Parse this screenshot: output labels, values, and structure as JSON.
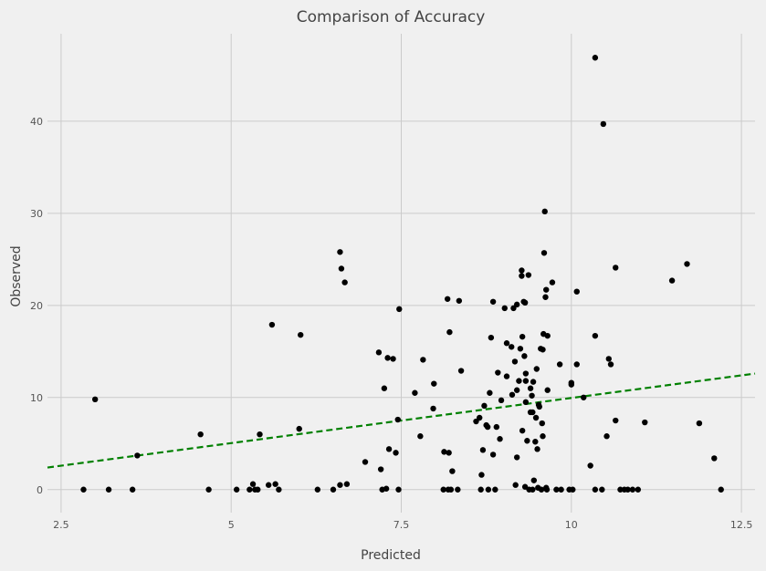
{
  "chart_data": {
    "type": "scatter",
    "title": "Comparison of Accuracy",
    "xlabel": "Predicted",
    "ylabel": "Observed",
    "xlim": [
      2.3,
      12.7
    ],
    "ylim": [
      -2.5,
      49.5
    ],
    "xticks": [
      2.5,
      5,
      7.5,
      10,
      12.5
    ],
    "xtick_labels": [
      "2.5",
      "5",
      "7.5",
      "10",
      "12.5"
    ],
    "yticks": [
      0,
      10,
      20,
      30,
      40
    ],
    "ytick_labels": [
      "0",
      "10",
      "20",
      "30",
      "40"
    ],
    "grid": true,
    "colors": {
      "background": "#f0f0f0",
      "grid": "#cbcbcb",
      "points": "#000000",
      "fit_line": "#008000"
    },
    "fit_line": {
      "style": "dashed",
      "x": [
        2.3,
        12.7
      ],
      "y": [
        2.4,
        12.6
      ]
    },
    "series": [
      {
        "points": [
          [
            2.83,
            0
          ],
          [
            3.0,
            9.8
          ],
          [
            3.2,
            0
          ],
          [
            3.55,
            0
          ],
          [
            3.62,
            3.7
          ],
          [
            4.55,
            6.0
          ],
          [
            4.67,
            0
          ],
          [
            5.08,
            0
          ],
          [
            5.27,
            0
          ],
          [
            5.32,
            0.6
          ],
          [
            5.35,
            0
          ],
          [
            5.39,
            0
          ],
          [
            5.42,
            6.0
          ],
          [
            5.55,
            0.5
          ],
          [
            5.6,
            17.9
          ],
          [
            5.65,
            0.6
          ],
          [
            5.7,
            0
          ],
          [
            6.0,
            6.6
          ],
          [
            6.02,
            16.8
          ],
          [
            6.27,
            0
          ],
          [
            6.5,
            0
          ],
          [
            6.6,
            25.8
          ],
          [
            6.6,
            0.5
          ],
          [
            6.62,
            24.0
          ],
          [
            6.67,
            22.5
          ],
          [
            6.7,
            0.6
          ],
          [
            6.97,
            3.0
          ],
          [
            7.17,
            14.9
          ],
          [
            7.2,
            2.2
          ],
          [
            7.22,
            0
          ],
          [
            7.25,
            11.0
          ],
          [
            7.28,
            0.1
          ],
          [
            7.3,
            14.3
          ],
          [
            7.32,
            4.4
          ],
          [
            7.38,
            14.2
          ],
          [
            7.42,
            4.0
          ],
          [
            7.45,
            7.6
          ],
          [
            7.46,
            0
          ],
          [
            7.47,
            19.6
          ],
          [
            7.7,
            10.5
          ],
          [
            7.78,
            5.8
          ],
          [
            7.82,
            14.1
          ],
          [
            7.97,
            8.8
          ],
          [
            7.98,
            11.5
          ],
          [
            8.12,
            0
          ],
          [
            8.13,
            4.1
          ],
          [
            8.18,
            20.7
          ],
          [
            8.19,
            0
          ],
          [
            8.2,
            4.0
          ],
          [
            8.21,
            17.1
          ],
          [
            8.23,
            0
          ],
          [
            8.25,
            2.0
          ],
          [
            8.33,
            0
          ],
          [
            8.35,
            20.5
          ],
          [
            8.38,
            12.9
          ],
          [
            8.6,
            7.4
          ],
          [
            8.65,
            7.8
          ],
          [
            8.67,
            0
          ],
          [
            8.68,
            1.6
          ],
          [
            8.7,
            4.3
          ],
          [
            8.72,
            9.1
          ],
          [
            8.75,
            7.0
          ],
          [
            8.77,
            6.8
          ],
          [
            8.78,
            0
          ],
          [
            8.8,
            10.5
          ],
          [
            8.82,
            16.5
          ],
          [
            8.85,
            20.4
          ],
          [
            8.85,
            3.8
          ],
          [
            8.88,
            0
          ],
          [
            8.9,
            6.8
          ],
          [
            8.92,
            12.7
          ],
          [
            8.95,
            5.5
          ],
          [
            8.97,
            9.7
          ],
          [
            9.02,
            19.7
          ],
          [
            9.05,
            15.9
          ],
          [
            9.05,
            12.3
          ],
          [
            9.12,
            15.5
          ],
          [
            9.13,
            10.3
          ],
          [
            9.15,
            19.7
          ],
          [
            9.17,
            13.9
          ],
          [
            9.18,
            0.5
          ],
          [
            9.2,
            10.8
          ],
          [
            9.2,
            20.1
          ],
          [
            9.2,
            3.5
          ],
          [
            9.23,
            11.8
          ],
          [
            9.25,
            15.3
          ],
          [
            9.27,
            23.2
          ],
          [
            9.27,
            23.8
          ],
          [
            9.28,
            6.4
          ],
          [
            9.28,
            16.6
          ],
          [
            9.3,
            20.4
          ],
          [
            9.31,
            14.5
          ],
          [
            9.32,
            20.3
          ],
          [
            9.32,
            0.3
          ],
          [
            9.33,
            11.8
          ],
          [
            9.33,
            9.5
          ],
          [
            9.33,
            12.6
          ],
          [
            9.35,
            5.3
          ],
          [
            9.37,
            23.3
          ],
          [
            9.38,
            0
          ],
          [
            9.4,
            11.0
          ],
          [
            9.4,
            8.4
          ],
          [
            9.42,
            10.2
          ],
          [
            9.43,
            0
          ],
          [
            9.43,
            8.4
          ],
          [
            9.44,
            11.7
          ],
          [
            9.45,
            1.0
          ],
          [
            9.47,
            5.2
          ],
          [
            9.48,
            7.8
          ],
          [
            9.49,
            13.1
          ],
          [
            9.5,
            4.4
          ],
          [
            9.51,
            0.2
          ],
          [
            9.52,
            9.2
          ],
          [
            9.53,
            9.0
          ],
          [
            9.55,
            15.3
          ],
          [
            9.56,
            0
          ],
          [
            9.57,
            7.2
          ],
          [
            9.58,
            5.8
          ],
          [
            9.58,
            15.2
          ],
          [
            9.59,
            16.9
          ],
          [
            9.6,
            25.7
          ],
          [
            9.61,
            30.2
          ],
          [
            9.62,
            20.9
          ],
          [
            9.63,
            21.7
          ],
          [
            9.63,
            0.2
          ],
          [
            9.64,
            0
          ],
          [
            9.65,
            16.7
          ],
          [
            9.65,
            10.8
          ],
          [
            9.72,
            22.5
          ],
          [
            9.78,
            0
          ],
          [
            9.83,
            13.6
          ],
          [
            9.85,
            0
          ],
          [
            9.97,
            0
          ],
          [
            10.0,
            11.6
          ],
          [
            10.0,
            11.4
          ],
          [
            10.02,
            0
          ],
          [
            10.08,
            21.5
          ],
          [
            10.08,
            13.6
          ],
          [
            10.18,
            10.0
          ],
          [
            10.28,
            2.6
          ],
          [
            10.35,
            16.7
          ],
          [
            10.35,
            46.9
          ],
          [
            10.35,
            0
          ],
          [
            10.45,
            0
          ],
          [
            10.47,
            39.7
          ],
          [
            10.52,
            5.8
          ],
          [
            10.55,
            14.2
          ],
          [
            10.58,
            13.6
          ],
          [
            10.65,
            24.1
          ],
          [
            10.65,
            7.5
          ],
          [
            10.72,
            0
          ],
          [
            10.78,
            0
          ],
          [
            10.83,
            0
          ],
          [
            10.9,
            0
          ],
          [
            10.98,
            0
          ],
          [
            11.08,
            7.3
          ],
          [
            11.48,
            22.7
          ],
          [
            11.7,
            24.5
          ],
          [
            11.88,
            7.2
          ],
          [
            12.1,
            3.4
          ],
          [
            12.2,
            0
          ]
        ]
      }
    ]
  }
}
